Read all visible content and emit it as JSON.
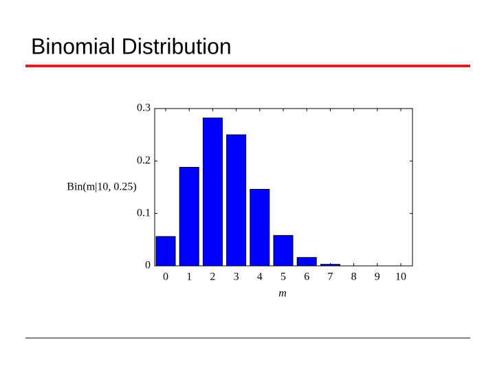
{
  "slide_title": "Binomial Distribution",
  "chart_data": {
    "type": "bar",
    "ylabel": "Bin(m|10, 0.25)",
    "xlabel": "m",
    "categories": [
      "0",
      "1",
      "2",
      "3",
      "4",
      "5",
      "6",
      "7",
      "8",
      "9",
      "10"
    ],
    "values": [
      0.056,
      0.188,
      0.282,
      0.25,
      0.146,
      0.058,
      0.016,
      0.003,
      0,
      0,
      0
    ],
    "color": "#0000ff",
    "ylim": [
      0,
      0.3
    ],
    "yticks": [
      0,
      0.1,
      0.2,
      0.3
    ]
  }
}
